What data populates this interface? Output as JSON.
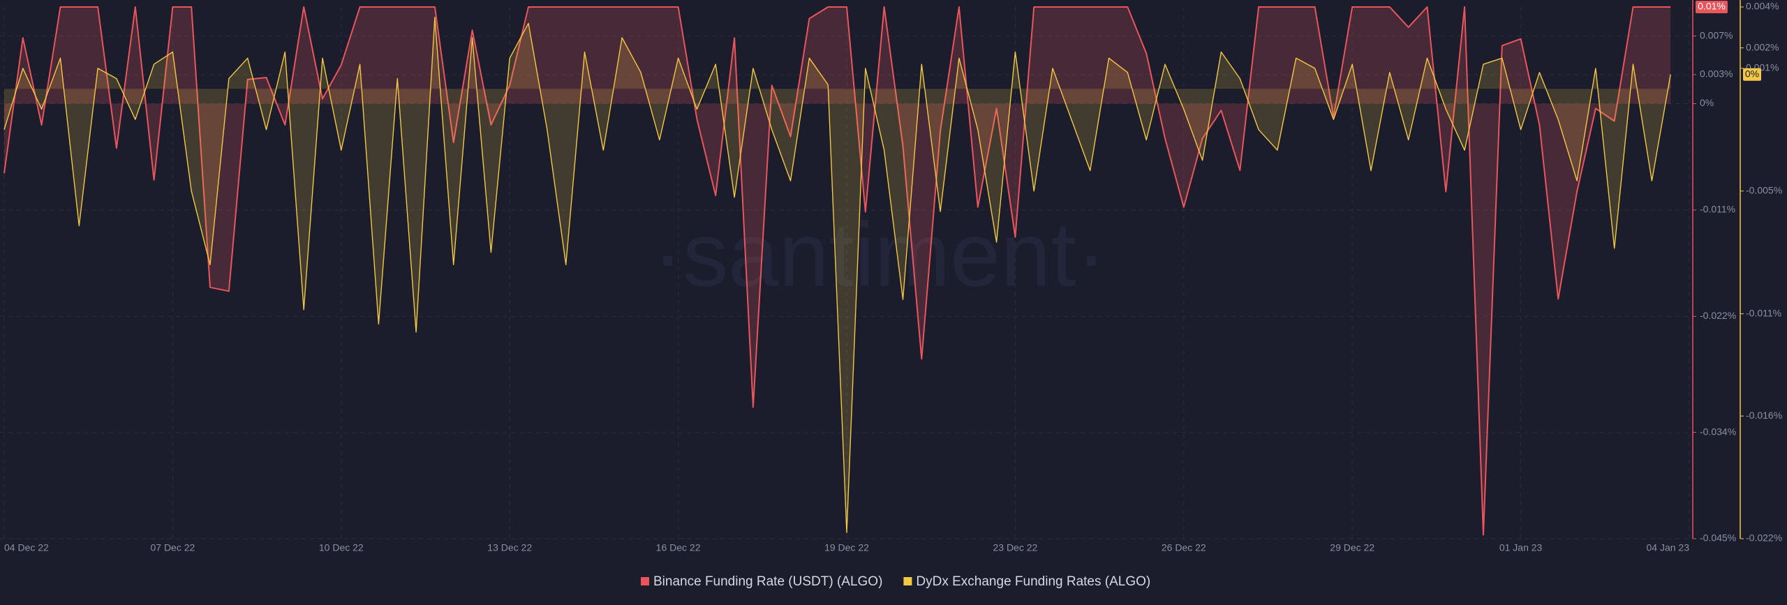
{
  "chart_data": {
    "type": "line",
    "watermark": "·santiment·",
    "x": [
      "04 Dec 22",
      null,
      null,
      null,
      null,
      null,
      null,
      null,
      null,
      "07 Dec 22",
      null,
      null,
      null,
      null,
      null,
      null,
      null,
      null,
      "10 Dec 22",
      null,
      null,
      null,
      null,
      null,
      null,
      null,
      null,
      "13 Dec 22",
      null,
      null,
      null,
      null,
      null,
      null,
      null,
      null,
      "16 Dec 22",
      null,
      null,
      null,
      null,
      null,
      null,
      null,
      null,
      "19 Dec 22",
      null,
      null,
      null,
      null,
      null,
      null,
      null,
      null,
      "23 Dec 22",
      null,
      null,
      null,
      null,
      null,
      null,
      null,
      null,
      "26 Dec 22",
      null,
      null,
      null,
      null,
      null,
      null,
      null,
      null,
      "29 Dec 22",
      null,
      null,
      null,
      null,
      null,
      null,
      null,
      null,
      "01 Jan 23",
      null,
      null,
      null,
      null,
      null,
      null,
      null,
      null,
      "04 Jan 23"
    ],
    "ylim": [
      -0.045,
      0.01
    ],
    "yticks": [
      {
        "value": 0.007,
        "label": "0.007%"
      },
      {
        "value": 0.003,
        "label": "0.003%"
      },
      {
        "value": 0,
        "label": "0%"
      },
      {
        "value": -0.011,
        "label": "-0.011%"
      },
      {
        "value": -0.022,
        "label": "-0.022%"
      },
      {
        "value": -0.034,
        "label": "-0.034%"
      },
      {
        "value": -0.045,
        "label": "-0.045%"
      }
    ],
    "y2lim": [
      -0.022,
      0.004
    ],
    "y2ticks": [
      {
        "value": 0.004,
        "label": "0.004%"
      },
      {
        "value": 0.002,
        "label": "0.002%"
      },
      {
        "value": 0.001,
        "label": "0.001%"
      },
      {
        "value": -0.005,
        "label": "-0.005%"
      },
      {
        "value": -0.011,
        "label": "-0.011%"
      },
      {
        "value": -0.016,
        "label": "-0.016%"
      },
      {
        "value": -0.022,
        "label": "-0.022%"
      }
    ],
    "grid": true,
    "legend": "bottom",
    "series": [
      {
        "name": "Binance Funding Rate (USDT) (ALGO)",
        "color": "#e8565c",
        "axis": "y",
        "last_value_label": "0.01%",
        "values": [
          -0.0072,
          0.0068,
          -0.0022,
          0.01,
          0.01,
          0.01,
          -0.0046,
          0.01,
          -0.0079,
          0.01,
          0.01,
          -0.019,
          -0.0194,
          0.0025,
          0.0027,
          -0.0022,
          0.01,
          0.0005,
          0.004,
          0.01,
          0.01,
          0.01,
          0.01,
          0.01,
          -0.004,
          0.0076,
          -0.0022,
          0.0019,
          0.01,
          0.01,
          0.01,
          0.01,
          0.01,
          0.01,
          0.01,
          0.01,
          0.01,
          -0.0016,
          -0.0095,
          0.0068,
          -0.0314,
          0.0019,
          -0.0034,
          0.0088,
          0.01,
          0.01,
          -0.0112,
          0.01,
          -0.0044,
          -0.0264,
          -0.0028,
          0.01,
          -0.0107,
          -0.0005,
          -0.0138,
          0.01,
          0.01,
          0.01,
          0.01,
          0.01,
          0.01,
          0.0052,
          -0.0036,
          -0.0107,
          -0.0036,
          -0.0007,
          -0.0069,
          0.01,
          0.01,
          0.01,
          0.01,
          -0.0014,
          0.01,
          0.01,
          0.01,
          0.0079,
          0.01,
          -0.0091,
          0.01,
          -0.0446,
          0.006,
          0.0067,
          -0.0022,
          -0.0202,
          -0.0091,
          -0.0005,
          -0.0018,
          0.01,
          0.01,
          0.01,
          null
        ]
      },
      {
        "name": "DyDx Exchange Funding Rates (ALGO)",
        "color": "#f3c845",
        "axis": "y2",
        "last_value_label": "0%",
        "values": [
          -0.002,
          0.001,
          -0.001,
          0.0015,
          -0.0067,
          0.001,
          0.0005,
          -0.0015,
          0.0012,
          0.0018,
          -0.005,
          -0.0086,
          0.0005,
          0.0015,
          -0.002,
          0.0018,
          -0.0108,
          0.0015,
          -0.003,
          0.0012,
          -0.0115,
          0.0005,
          -0.0119,
          0.0035,
          -0.0086,
          0.0025,
          -0.008,
          0.0015,
          0.0032,
          -0.002,
          -0.0086,
          0.0018,
          -0.003,
          0.0025,
          0.0008,
          -0.0025,
          0.0015,
          -0.001,
          0.0012,
          -0.0053,
          0.001,
          -0.002,
          -0.0045,
          0.0015,
          0.0002,
          -0.0217,
          0.001,
          -0.003,
          -0.0103,
          0.0012,
          -0.006,
          0.0015,
          -0.002,
          -0.0075,
          0.0018,
          -0.005,
          0.001,
          -0.0015,
          -0.004,
          0.0015,
          0.0008,
          -0.0025,
          0.0012,
          -0.001,
          -0.0035,
          0.0018,
          0.0005,
          -0.002,
          -0.003,
          0.0015,
          0.001,
          -0.0015,
          0.0012,
          -0.004,
          0.0008,
          -0.0025,
          0.0015,
          -0.001,
          -0.003,
          0.0012,
          0.0015,
          -0.002,
          0.0008,
          -0.0015,
          -0.0045,
          0.001,
          -0.0078,
          0.0012,
          -0.0045,
          0.0007,
          null
        ]
      }
    ]
  }
}
